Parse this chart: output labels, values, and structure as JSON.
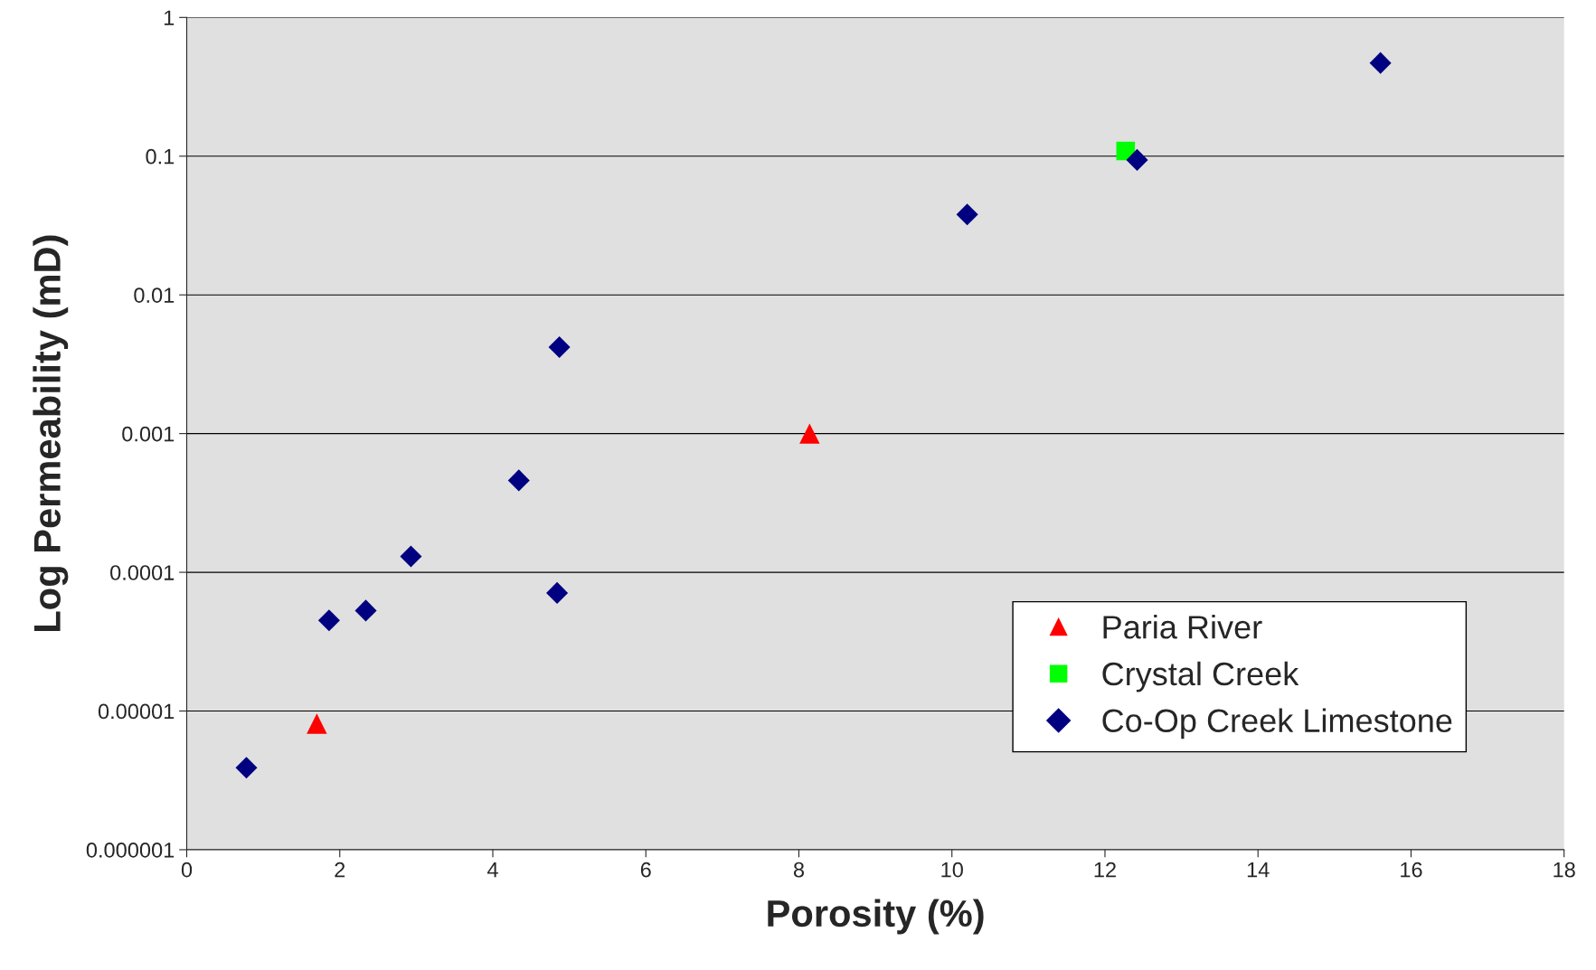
{
  "chart_data": {
    "type": "scatter",
    "xlabel": "Porosity (%)",
    "ylabel": "Log Permeability (mD)",
    "log": "y",
    "grid": "y",
    "legend": "bottom right",
    "xlim": [
      0,
      18
    ],
    "xticks": [
      0,
      2,
      4,
      6,
      8,
      10,
      12,
      14,
      16,
      18
    ],
    "ylim": [
      1e-06,
      1
    ],
    "yticks": [
      {
        "value": 1e-06,
        "label": "0.000001"
      },
      {
        "value": 1e-05,
        "label": "0.00001"
      },
      {
        "value": 0.0001,
        "label": "0.0001"
      },
      {
        "value": 0.001,
        "label": "0.001"
      },
      {
        "value": 0.01,
        "label": "0.01"
      },
      {
        "value": 0.1,
        "label": "0.1"
      },
      1
    ],
    "series": [
      {
        "name": "Paria River",
        "color": "#ff0000",
        "marker": "triangle",
        "x": [
          1.7,
          8.14
        ],
        "values": [
          8.1e-06,
          0.001
        ]
      },
      {
        "name": "Crystal Creek",
        "color": "#00ff00",
        "marker": "square",
        "x": [
          12.27
        ],
        "values": [
          0.109
        ]
      },
      {
        "name": "Co-Op Creek Limestone",
        "color": "#000080",
        "marker": "diamond",
        "x": [
          0.78,
          1.86,
          2.34,
          2.93,
          4.34,
          4.84,
          4.87,
          10.2,
          12.42,
          15.6
        ],
        "values": [
          3.9e-06,
          4.5e-05,
          5.3e-05,
          0.00013,
          0.00046,
          7.1e-05,
          0.0042,
          0.038,
          0.094,
          0.47
        ]
      }
    ]
  }
}
